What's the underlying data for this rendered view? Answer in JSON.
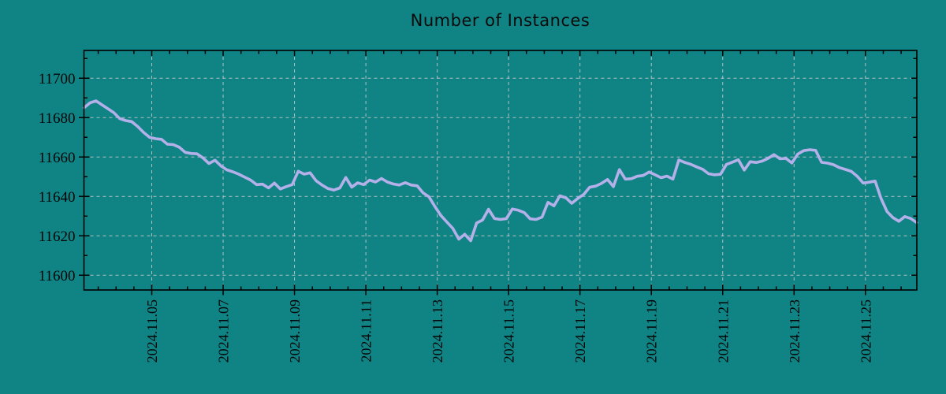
{
  "title": "Number of Instances",
  "colors": {
    "background": "#108384",
    "line": "#b4b0e9",
    "grid": "#cdcdcd",
    "axis": "#000000",
    "text": "#0a0a0a"
  },
  "chart_data": {
    "type": "line",
    "title": "Number of Instances",
    "xlabel": "",
    "ylabel": "",
    "legend": "none",
    "grid": "dashed lines on major x and y ticks",
    "x_tick_labels": [
      "2024.11.05",
      "2024.11.07",
      "2024.11.09",
      "2024.11.11",
      "2024.11.13",
      "2024.11.15",
      "2024.11.17",
      "2024.11.19",
      "2024.11.21",
      "2024.11.23",
      "2024.11.25"
    ],
    "x_tick_days": [
      5,
      7,
      9,
      11,
      13,
      15,
      17,
      19,
      21,
      23,
      25
    ],
    "x_minor_tick_step_days": 0.5,
    "y_ticks": [
      11600,
      11620,
      11640,
      11660,
      11680,
      11700
    ],
    "y_minor_tick_step": 10,
    "xlim_days": [
      3.1,
      26.44
    ],
    "ylim": [
      11592.5,
      11714.1
    ],
    "series": [
      {
        "name": "instances",
        "x_start_day": 3.104,
        "x_step_days": 0.166667,
        "values": [
          11685,
          11687.5,
          11688.5,
          11686.5,
          11684.5,
          11682.5,
          11679.5,
          11678.5,
          11678,
          11675.5,
          11672.5,
          11670,
          11669.3,
          11669,
          11666.5,
          11666.3,
          11665,
          11662.4,
          11661.8,
          11661.6,
          11659.5,
          11656.7,
          11658.4,
          11655.5,
          11653.5,
          11652.5,
          11651.3,
          11649.8,
          11648.3,
          11646,
          11646.2,
          11644.3,
          11646.8,
          11643.8,
          11645,
          11646,
          11652.8,
          11651.3,
          11652,
          11648,
          11645.8,
          11644,
          11643.2,
          11644.3,
          11649.6,
          11644.7,
          11646.9,
          11646,
          11648.3,
          11647.3,
          11649.1,
          11647.3,
          11646.3,
          11645.8,
          11647,
          11645.8,
          11645.4,
          11641.8,
          11639.8,
          11634.8,
          11630.3,
          11627,
          11623.8,
          11618.3,
          11620.8,
          11617.5,
          11626.5,
          11628,
          11633.5,
          11628.8,
          11628.3,
          11628.7,
          11633.6,
          11633,
          11631.8,
          11628.6,
          11628.3,
          11629.5,
          11637,
          11635.2,
          11640.3,
          11639.3,
          11636.5,
          11639,
          11641,
          11644.6,
          11645.2,
          11646.6,
          11648.6,
          11645,
          11653.6,
          11648.8,
          11649,
          11650.2,
          11650.6,
          11652.4,
          11651,
          11649.5,
          11650.3,
          11648.8,
          11658.5,
          11657.2,
          11656.3,
          11655,
          11653.8,
          11651.5,
          11651,
          11651.2,
          11656.2,
          11657.4,
          11658.6,
          11653.4,
          11657.6,
          11657.2,
          11657.9,
          11659.3,
          11661.2,
          11659.1,
          11659.3,
          11657,
          11661.5,
          11663.2,
          11663.7,
          11663.4,
          11657.3,
          11656.9,
          11656.1,
          11654.6,
          11653.7,
          11652.7,
          11650.2,
          11646.8,
          11647.2,
          11647.8,
          11639,
          11632.3,
          11629.2,
          11627.4,
          11629.8,
          11628.8,
          11626.7
        ]
      }
    ]
  }
}
